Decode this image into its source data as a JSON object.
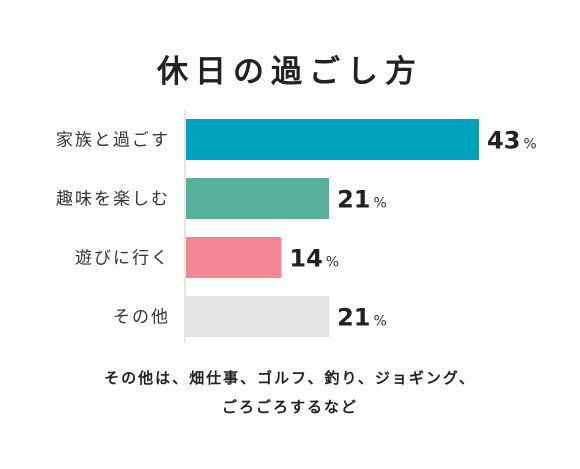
{
  "chart_data": {
    "type": "bar",
    "orientation": "horizontal",
    "title": "休日の過ごし方",
    "categories": [
      "家族と過ごす",
      "趣味を楽しむ",
      "遊びに行く",
      "その他"
    ],
    "values": [
      43,
      21,
      14,
      21
    ],
    "unit": "%",
    "colors": [
      "#00a0bf",
      "#57b19a",
      "#f68595",
      "#e3e3e3"
    ],
    "xlim": [
      0,
      43
    ],
    "grid": false,
    "legend": "none"
  },
  "note": {
    "line1": "その他は、畑仕事、ゴルフ、釣り、ジョギング、",
    "line2": "ごろごろするなど"
  }
}
